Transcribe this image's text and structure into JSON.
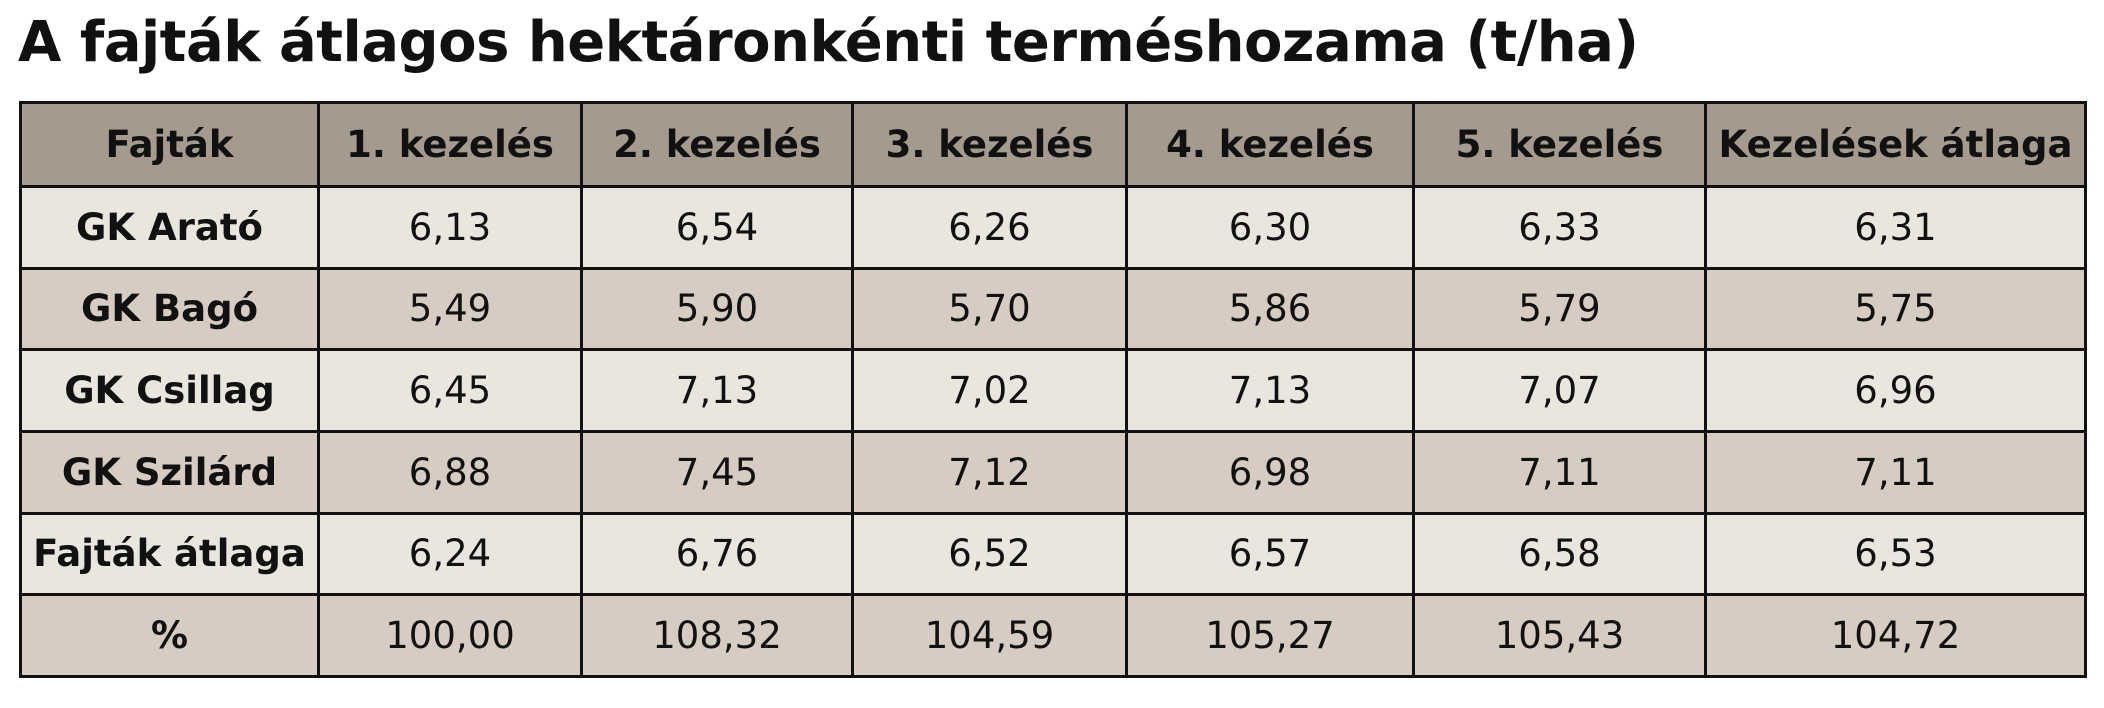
{
  "header": {
    "title": "A fajták átlagos hektáronkénti terméshozama (t/ha)"
  },
  "table": {
    "columns": [
      "Fajták",
      "1. kezelés",
      "2. kezelés",
      "3. kezelés",
      "4. kezelés",
      "5. kezelés",
      "Kezelések átlaga"
    ],
    "rows": [
      [
        "GK Arató",
        "6,13",
        "6,54",
        "6,26",
        "6,30",
        "6,33",
        "6,31"
      ],
      [
        "GK Bagó",
        "5,49",
        "5,90",
        "5,70",
        "5,86",
        "5,79",
        "5,75"
      ],
      [
        "GK Csillag",
        "6,45",
        "7,13",
        "7,02",
        "7,13",
        "7,07",
        "6,96"
      ],
      [
        "GK Szilárd",
        "6,88",
        "7,45",
        "7,12",
        "6,98",
        "7,11",
        "7,11"
      ],
      [
        "Fajták átlaga",
        "6,24",
        "6,76",
        "6,52",
        "6,57",
        "6,58",
        "6,53"
      ],
      [
        "%",
        "100,00",
        "108,32",
        "104,59",
        "105,27",
        "105,43",
        "104,72"
      ]
    ]
  }
}
